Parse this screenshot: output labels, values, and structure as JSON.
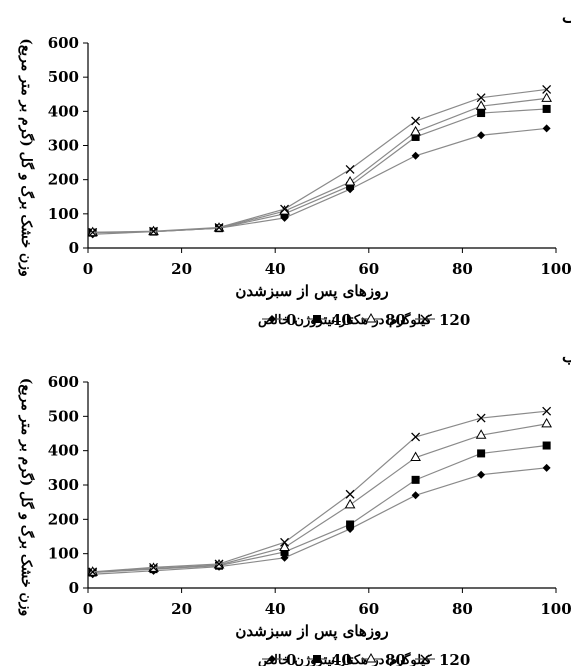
{
  "chart_data": [
    {
      "type": "line",
      "panel_label": "الف",
      "ylabel": "وزن خشک برگ و گل (گرم بر متر مربع)",
      "xlabel": "روزهای پس از سبزشدن",
      "legend_title": "کیلوگرم در هکتار نیتروژن خالص",
      "legend_placement": "bottom",
      "xlim": [
        0,
        100
      ],
      "ylim": [
        0,
        600
      ],
      "xticks": [
        0,
        20,
        40,
        60,
        80,
        100
      ],
      "yticks": [
        0,
        100,
        200,
        300,
        400,
        500,
        600
      ],
      "grid": false,
      "x": [
        1,
        14,
        28,
        42,
        56,
        70,
        84,
        98
      ],
      "series": [
        {
          "name": "0",
          "marker": "diamond",
          "values": [
            40,
            48,
            58,
            88,
            172,
            270,
            330,
            350
          ]
        },
        {
          "name": "40",
          "marker": "square",
          "values": [
            45,
            48,
            58,
            100,
            182,
            325,
            395,
            407
          ]
        },
        {
          "name": "80",
          "marker": "triangle",
          "values": [
            45,
            48,
            58,
            108,
            193,
            340,
            415,
            438
          ]
        },
        {
          "name": "120",
          "marker": "x",
          "values": [
            46,
            49,
            60,
            114,
            230,
            372,
            440,
            464
          ]
        }
      ]
    },
    {
      "type": "line",
      "panel_label": "ب",
      "ylabel": "وزن خشک برگ و گل (گرم بر متر مربع)",
      "xlabel": "روزهای پس از سبزشدن",
      "legend_title": "کیلوگرم در هکتار نیتروژن خالص",
      "legend_placement": "bottom",
      "xlim": [
        0,
        100
      ],
      "ylim": [
        0,
        600
      ],
      "xticks": [
        0,
        20,
        40,
        60,
        80,
        100
      ],
      "yticks": [
        0,
        100,
        200,
        300,
        400,
        500,
        600
      ],
      "grid": false,
      "x": [
        1,
        14,
        28,
        42,
        56,
        70,
        84,
        98
      ],
      "series": [
        {
          "name": "0",
          "marker": "diamond",
          "values": [
            40,
            50,
            62,
            88,
            172,
            270,
            330,
            350
          ]
        },
        {
          "name": "40",
          "marker": "square",
          "values": [
            45,
            55,
            65,
            105,
            185,
            315,
            392,
            415
          ]
        },
        {
          "name": "80",
          "marker": "triangle",
          "values": [
            46,
            57,
            67,
            118,
            242,
            380,
            445,
            478
          ]
        },
        {
          "name": "120",
          "marker": "x",
          "values": [
            47,
            60,
            70,
            133,
            273,
            440,
            495,
            515
          ]
        }
      ]
    }
  ]
}
